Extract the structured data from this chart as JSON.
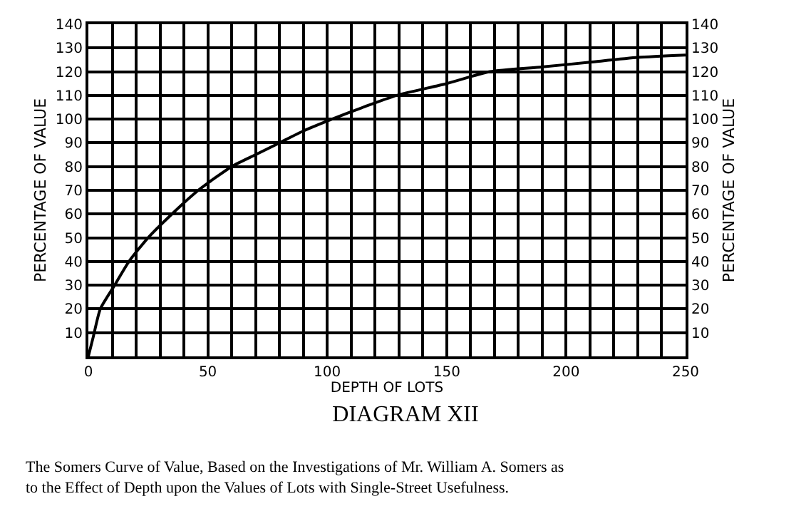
{
  "chart_data": {
    "type": "line",
    "title": "DIAGRAM XII",
    "xlabel": "DEPTH OF LOTS",
    "ylabel": "PERCENTAGE OF VALUE",
    "y2label": "PERCENTAGE OF VALUE",
    "annotations": [
      "The Somers Curve of Value, Based on the Investigations of Mr. William A. Somers as to the Effect of Depth upon the Values of Lots with Single-Street Usefulness."
    ],
    "series": [
      {
        "color": "#000000",
        "x": [
          0,
          2,
          5,
          11,
          17,
          25,
          35,
          46,
          60,
          70,
          80,
          90,
          102,
          115,
          129,
          150,
          168,
          190,
          210,
          230,
          250
        ],
        "values": [
          0,
          8,
          20,
          30,
          40,
          50,
          60,
          70,
          80,
          85,
          90,
          95,
          100,
          105,
          110,
          115,
          120,
          122,
          124,
          126,
          127
        ]
      }
    ],
    "xlim": [
      0,
      250
    ],
    "ylim": [
      0,
      140
    ],
    "y2lim": [
      0,
      140
    ],
    "xticks": [
      0,
      {
        "value": 10,
        "label": null
      },
      {
        "value": 20,
        "label": null
      },
      {
        "value": 30,
        "label": null
      },
      {
        "value": 40,
        "label": null
      },
      50,
      {
        "value": 60,
        "label": null
      },
      {
        "value": 70,
        "label": null
      },
      {
        "value": 80,
        "label": null
      },
      {
        "value": 90,
        "label": null
      },
      100,
      {
        "value": 110,
        "label": null
      },
      {
        "value": 120,
        "label": null
      },
      {
        "value": 130,
        "label": null
      },
      {
        "value": 140,
        "label": null
      },
      150,
      {
        "value": 160,
        "label": null
      },
      {
        "value": 170,
        "label": null
      },
      {
        "value": 180,
        "label": null
      },
      {
        "value": 190,
        "label": null
      },
      200,
      {
        "value": 210,
        "label": null
      },
      {
        "value": 220,
        "label": null
      },
      {
        "value": 230,
        "label": null
      },
      {
        "value": 240,
        "label": null
      },
      250
    ],
    "yticks": [
      {
        "value": 0,
        "label": null
      },
      10,
      20,
      30,
      40,
      50,
      60,
      70,
      80,
      90,
      100,
      110,
      120,
      130,
      140
    ],
    "y2ticks": [
      10,
      20,
      30,
      40,
      50,
      60,
      70,
      80,
      90,
      100,
      110,
      120,
      130,
      140
    ],
    "grid": true,
    "marker": "none",
    "line_style": "solid"
  }
}
